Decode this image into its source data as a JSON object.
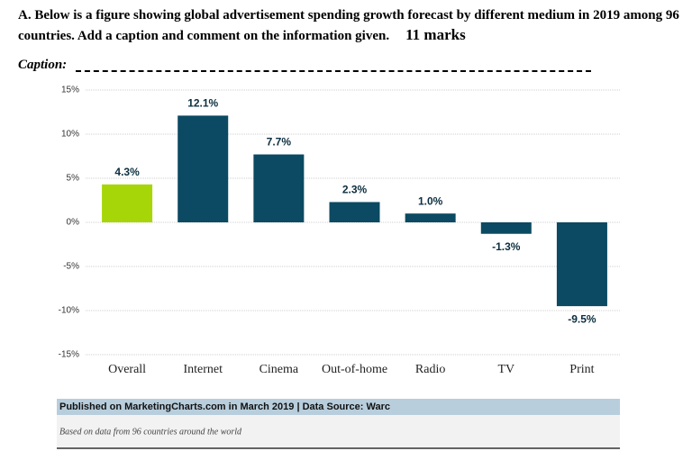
{
  "question": {
    "text": "A. Below is a figure showing global advertisement spending growth forecast by different medium in 2019 among 96 countries. Add a caption and comment on the information given.",
    "marks": "11 marks"
  },
  "caption_label": "Caption:",
  "chart_data": {
    "type": "bar",
    "categories": [
      "Overall",
      "Internet",
      "Cinema",
      "Out-of-home",
      "Radio",
      "TV",
      "Print"
    ],
    "values": [
      4.3,
      12.1,
      7.7,
      2.3,
      1.0,
      -1.3,
      -9.5
    ],
    "value_labels": [
      "4.3%",
      "12.1%",
      "7.7%",
      "2.3%",
      "1.0%",
      "-1.3%",
      "-9.5%"
    ],
    "colors": [
      "#a6d608",
      "#0b4a62",
      "#0b4a62",
      "#0b4a62",
      "#0b4a62",
      "#0b4a62",
      "#0b4a62"
    ],
    "ylim": [
      -15,
      15
    ],
    "yticks": [
      {
        "value": 15,
        "label": "15%"
      },
      {
        "value": 10,
        "label": "10%"
      },
      {
        "value": 5,
        "label": "5%"
      },
      {
        "value": 0,
        "label": "0%"
      },
      {
        "value": -5,
        "label": "-5%"
      },
      {
        "value": -10,
        "label": "-10%"
      },
      {
        "value": -15,
        "label": "-15%"
      }
    ],
    "grid": true
  },
  "footer": {
    "source": "Published on MarketingCharts.com in March 2019 | Data Source: Warc",
    "note": "Based on data from 96 countries around the world"
  }
}
